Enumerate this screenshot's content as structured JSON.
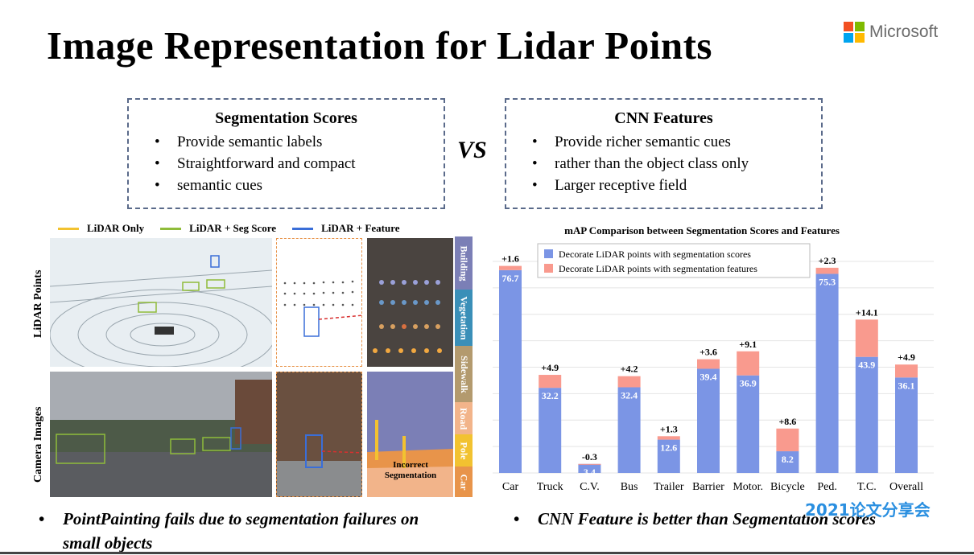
{
  "slide": {
    "title": "Image Representation for Lidar Points",
    "brand": "Microsoft",
    "vs": "VS",
    "watermark": "2021论文分享会"
  },
  "colors": {
    "ms_red": "#f25022",
    "ms_green": "#7fba00",
    "ms_blue": "#00a4ef",
    "ms_yellow": "#ffb900",
    "bar_blue": "#7b95e5",
    "bar_salmon": "#f99a8e",
    "lidar_only": "#f2c230",
    "lidar_seg": "#8fbc3a",
    "lidar_feature": "#3a6ed8"
  },
  "left_box": {
    "heading": "Segmentation Scores",
    "items": [
      "Provide semantic labels",
      "Straightforward and compact",
      "semantic cues"
    ]
  },
  "right_box": {
    "heading": "CNN Features",
    "items": [
      "Provide richer semantic cues",
      "rather than the object class only",
      "Larger receptive field"
    ]
  },
  "figure": {
    "legend": [
      "LiDAR Only",
      "LiDAR + Seg Score",
      "LiDAR + Feature"
    ],
    "row_labels": [
      "LiDAR Points",
      "Camera Images"
    ],
    "annotation_lines": [
      "Incorrect",
      "Segmentation"
    ],
    "seg_classes": [
      {
        "label": "Building",
        "color": "#7b7fb6"
      },
      {
        "label": "Vegetation",
        "color": "#3a8fb8"
      },
      {
        "label": "Sidewalk",
        "color": "#b39a6e"
      },
      {
        "label": "Road",
        "color": "#f2b48a"
      },
      {
        "label": "Pole",
        "color": "#f2c230"
      },
      {
        "label": "Car",
        "color": "#e8944a"
      }
    ]
  },
  "bottom": {
    "left": [
      "PointPainting fails due to segmentation failures on",
      "small objects"
    ],
    "right": "CNN Feature is better than Segmentation scores"
  },
  "chart_data": {
    "type": "bar",
    "title": "mAP Comparison between Segmentation Scores and Features",
    "categories": [
      "Car",
      "Truck",
      "C.V.",
      "Bus",
      "Trailer",
      "Barrier",
      "Motor.",
      "Bicycle",
      "Ped.",
      "T.C.",
      "Overall"
    ],
    "series": [
      {
        "name": "Decorate LiDAR points with segmentation scores",
        "values": [
          76.7,
          32.2,
          3.4,
          32.4,
          12.6,
          39.4,
          36.9,
          8.2,
          75.3,
          43.9,
          36.1
        ]
      },
      {
        "name": "Decorate LiDAR points with segmentation features",
        "values": [
          1.6,
          4.9,
          -0.3,
          4.2,
          1.3,
          3.6,
          9.1,
          8.6,
          2.3,
          14.1,
          4.9
        ]
      }
    ],
    "delta_labels": [
      "+1.6",
      "+4.9",
      "-0.3",
      "+4.2",
      "+1.3",
      "+3.6",
      "+9.1",
      "+8.6",
      "+2.3",
      "+14.1",
      "+4.9"
    ],
    "value_labels": [
      "76.7",
      "32.2",
      "3.4",
      "32.4",
      "12.6",
      "39.4",
      "36.9",
      "8.2",
      "75.3",
      "43.9",
      "36.1"
    ],
    "stacked": true,
    "grid": true,
    "legend_position": "top"
  }
}
